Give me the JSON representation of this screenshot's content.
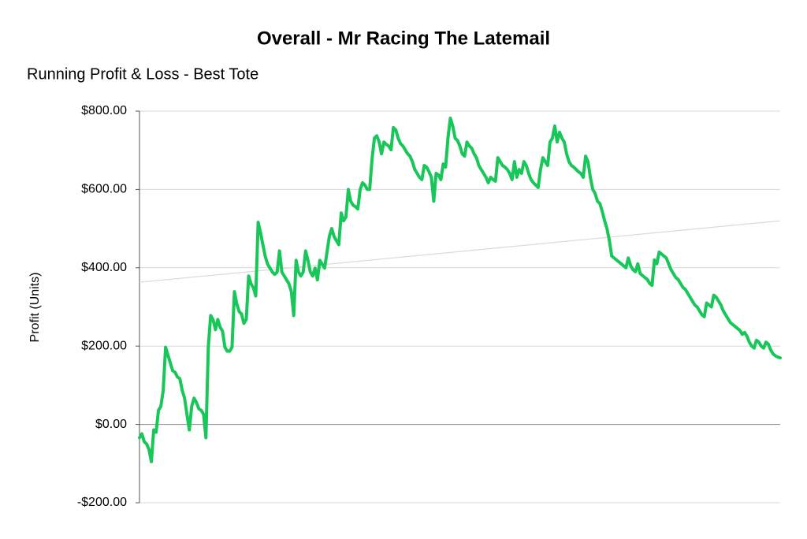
{
  "chart_data": {
    "type": "line",
    "title": "Overall - Mr Racing The Latemail",
    "subtitle": "Running Profit & Loss - Best Tote",
    "y_label": "Profit (Units)",
    "ylim": [
      -200,
      800
    ],
    "yticks": [
      {
        "value": -200,
        "label": "-$200.00"
      },
      {
        "value": 0,
        "label": "$0.00"
      },
      {
        "value": 200,
        "label": "$200.00"
      },
      {
        "value": 400,
        "label": "$400.00"
      },
      {
        "value": 600,
        "label": "$600.00"
      },
      {
        "value": 800,
        "label": "$800.00"
      }
    ],
    "grid": true,
    "color": "#19c659",
    "trendline": {
      "values": [
        363,
        520
      ],
      "color": "#d9d9d9"
    },
    "values": [
      -34,
      -24,
      -44,
      -50,
      -64,
      -95,
      -14,
      -20,
      36,
      46,
      87,
      197,
      177,
      157,
      137,
      133,
      121,
      117,
      87,
      67,
      26,
      -14,
      46,
      67,
      56,
      40,
      36,
      26,
      -34,
      197,
      278,
      268,
      242,
      268,
      248,
      238,
      197,
      187,
      187,
      197,
      339,
      308,
      288,
      282,
      258,
      268,
      379,
      359,
      349,
      328,
      516,
      490,
      459,
      429,
      409,
      399,
      389,
      383,
      389,
      443,
      389,
      379,
      369,
      359,
      339,
      278,
      419,
      389,
      379,
      389,
      443,
      419,
      389,
      379,
      399,
      369,
      419,
      409,
      399,
      439,
      480,
      500,
      480,
      469,
      459,
      540,
      520,
      530,
      600,
      570,
      560,
      556,
      550,
      600,
      617,
      611,
      600,
      600,
      677,
      731,
      737,
      721,
      691,
      721,
      715,
      711,
      701,
      758,
      752,
      731,
      717,
      711,
      701,
      691,
      685,
      671,
      651,
      641,
      631,
      625,
      661,
      657,
      645,
      631,
      570,
      641,
      637,
      625,
      665,
      657,
      731,
      782,
      762,
      731,
      725,
      711,
      691,
      685,
      721,
      711,
      705,
      691,
      681,
      661,
      651,
      641,
      631,
      617,
      631,
      625,
      621,
      681,
      671,
      661,
      657,
      651,
      641,
      625,
      671,
      631,
      651,
      641,
      671,
      661,
      641,
      625,
      617,
      611,
      605,
      651,
      681,
      671,
      661,
      721,
      731,
      762,
      721,
      746,
      731,
      721,
      691,
      671,
      661,
      657,
      651,
      645,
      641,
      631,
      685,
      671,
      631,
      600,
      590,
      570,
      564,
      544,
      520,
      500,
      470,
      430,
      425,
      420,
      415,
      410,
      405,
      400,
      425,
      405,
      395,
      390,
      410,
      385,
      380,
      375,
      370,
      360,
      355,
      420,
      410,
      440,
      435,
      430,
      425,
      410,
      395,
      385,
      375,
      370,
      360,
      350,
      345,
      335,
      325,
      315,
      305,
      300,
      290,
      280,
      275,
      310,
      305,
      300,
      330,
      325,
      315,
      305,
      290,
      280,
      270,
      260,
      255,
      250,
      245,
      240,
      230,
      235,
      225,
      210,
      200,
      195,
      215,
      210,
      200,
      195,
      210,
      205,
      190,
      180,
      175,
      172,
      170
    ]
  }
}
